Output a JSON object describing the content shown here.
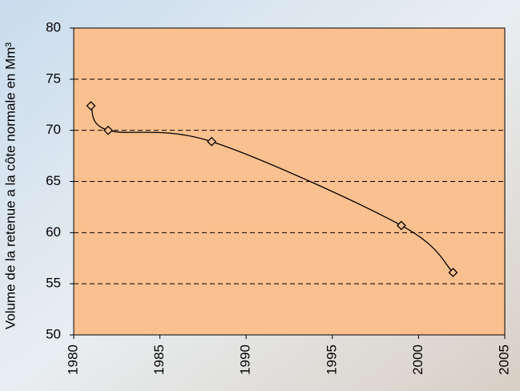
{
  "chart_data": {
    "type": "line",
    "ylabel": "Volume de la retenue a la côte normale en Mm³",
    "x": [
      1981,
      1982,
      1988,
      1999,
      2002
    ],
    "values": [
      72.4,
      70.0,
      68.9,
      60.7,
      56.1
    ],
    "color": "#000000",
    "plot_background": "#fbc08f",
    "marker": "diamond",
    "smooth": true,
    "xlim": [
      1980,
      2005
    ],
    "xticks": [
      1980,
      1985,
      1990,
      1995,
      2000,
      2005
    ],
    "ylim": [
      50,
      80
    ],
    "yticks": [
      50,
      55,
      60,
      65,
      70,
      75,
      80
    ],
    "grid": true
  }
}
